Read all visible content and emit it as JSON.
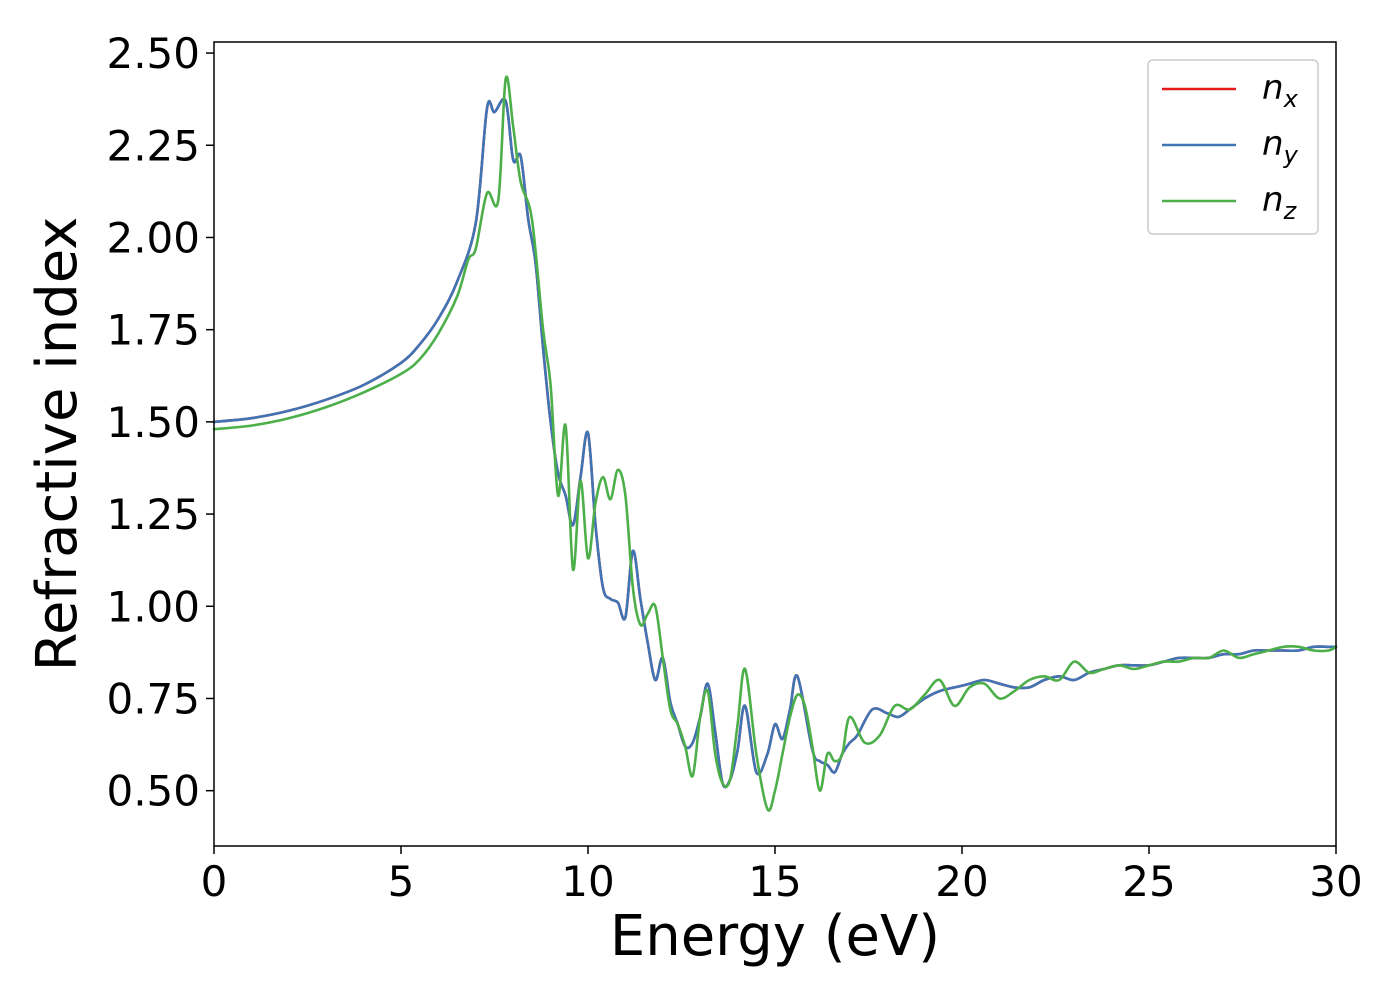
{
  "chart_data": {
    "type": "line",
    "title": "",
    "xlabel": "Energy (eV)",
    "ylabel": "Refractive index",
    "xlim": [
      0,
      30
    ],
    "ylim": [
      0.35,
      2.53
    ],
    "xticks": [
      0,
      5,
      10,
      15,
      20,
      25,
      30
    ],
    "xtick_labels": [
      "0",
      "5",
      "10",
      "15",
      "20",
      "25",
      "30"
    ],
    "yticks": [
      0.5,
      0.75,
      1.0,
      1.25,
      1.5,
      1.75,
      2.0,
      2.25,
      2.5
    ],
    "ytick_labels": [
      "0.50",
      "0.75",
      "1.00",
      "1.25",
      "1.50",
      "1.75",
      "2.00",
      "2.25",
      "2.50"
    ],
    "grid": false,
    "legend_position": "top-right",
    "series": [
      {
        "name": "n",
        "subscript": "x",
        "color": "#e41a1c",
        "x": [
          0,
          1,
          2,
          3,
          4,
          5,
          5.5,
          6,
          6.5,
          7,
          7.3,
          7.5,
          7.8,
          8,
          8.2,
          8.4,
          8.6,
          8.8,
          9,
          9.2,
          9.4,
          9.6,
          9.8,
          10,
          10.2,
          10.4,
          10.6,
          10.8,
          11,
          11.2,
          11.4,
          11.6,
          11.8,
          12,
          12.2,
          12.4,
          12.6,
          12.8,
          13,
          13.2,
          13.4,
          13.6,
          13.8,
          14,
          14.2,
          14.5,
          14.8,
          15,
          15.2,
          15.4,
          15.6,
          16,
          16.2,
          16.4,
          16.6,
          16.8,
          17,
          17.2,
          17.6,
          18,
          18.3,
          18.6,
          19,
          19.4,
          19.8,
          20.2,
          20.6,
          21,
          21.4,
          21.8,
          22.2,
          22.6,
          23,
          23.4,
          23.8,
          24.2,
          24.6,
          25,
          25.4,
          25.8,
          26.2,
          26.6,
          27,
          27.4,
          27.8,
          28.2,
          28.6,
          29,
          29.4,
          29.8,
          30
        ],
        "y": [
          1.5,
          1.51,
          1.53,
          1.56,
          1.6,
          1.66,
          1.71,
          1.78,
          1.88,
          2.04,
          2.35,
          2.34,
          2.37,
          2.21,
          2.22,
          2.05,
          1.93,
          1.7,
          1.5,
          1.36,
          1.3,
          1.22,
          1.35,
          1.47,
          1.22,
          1.05,
          1.02,
          1.01,
          0.97,
          1.15,
          1.02,
          0.9,
          0.8,
          0.86,
          0.74,
          0.68,
          0.62,
          0.63,
          0.7,
          0.79,
          0.66,
          0.52,
          0.53,
          0.61,
          0.73,
          0.55,
          0.6,
          0.68,
          0.64,
          0.72,
          0.81,
          0.61,
          0.58,
          0.57,
          0.55,
          0.6,
          0.63,
          0.65,
          0.72,
          0.71,
          0.7,
          0.72,
          0.75,
          0.77,
          0.78,
          0.79,
          0.8,
          0.79,
          0.78,
          0.78,
          0.8,
          0.81,
          0.8,
          0.82,
          0.83,
          0.84,
          0.84,
          0.84,
          0.85,
          0.86,
          0.86,
          0.86,
          0.87,
          0.87,
          0.88,
          0.88,
          0.88,
          0.88,
          0.89,
          0.89,
          0.89
        ]
      },
      {
        "name": "n",
        "subscript": "y",
        "color": "#3f75b5",
        "x": [
          0,
          1,
          2,
          3,
          4,
          5,
          5.5,
          6,
          6.5,
          7,
          7.3,
          7.5,
          7.8,
          8,
          8.2,
          8.4,
          8.6,
          8.8,
          9,
          9.2,
          9.4,
          9.6,
          9.8,
          10,
          10.2,
          10.4,
          10.6,
          10.8,
          11,
          11.2,
          11.4,
          11.6,
          11.8,
          12,
          12.2,
          12.4,
          12.6,
          12.8,
          13,
          13.2,
          13.4,
          13.6,
          13.8,
          14,
          14.2,
          14.5,
          14.8,
          15,
          15.2,
          15.4,
          15.6,
          16,
          16.2,
          16.4,
          16.6,
          16.8,
          17,
          17.2,
          17.6,
          18,
          18.3,
          18.6,
          19,
          19.4,
          19.8,
          20.2,
          20.6,
          21,
          21.4,
          21.8,
          22.2,
          22.6,
          23,
          23.4,
          23.8,
          24.2,
          24.6,
          25,
          25.4,
          25.8,
          26.2,
          26.6,
          27,
          27.4,
          27.8,
          28.2,
          28.6,
          29,
          29.4,
          29.8,
          30
        ],
        "y": [
          1.5,
          1.51,
          1.53,
          1.56,
          1.6,
          1.66,
          1.71,
          1.78,
          1.88,
          2.04,
          2.35,
          2.34,
          2.37,
          2.21,
          2.22,
          2.05,
          1.93,
          1.7,
          1.5,
          1.36,
          1.3,
          1.22,
          1.35,
          1.47,
          1.22,
          1.05,
          1.02,
          1.01,
          0.97,
          1.15,
          1.02,
          0.9,
          0.8,
          0.86,
          0.74,
          0.68,
          0.62,
          0.63,
          0.7,
          0.79,
          0.66,
          0.52,
          0.53,
          0.61,
          0.73,
          0.55,
          0.6,
          0.68,
          0.64,
          0.72,
          0.81,
          0.61,
          0.58,
          0.57,
          0.55,
          0.6,
          0.63,
          0.65,
          0.72,
          0.71,
          0.7,
          0.72,
          0.75,
          0.77,
          0.78,
          0.79,
          0.8,
          0.79,
          0.78,
          0.78,
          0.8,
          0.81,
          0.8,
          0.82,
          0.83,
          0.84,
          0.84,
          0.84,
          0.85,
          0.86,
          0.86,
          0.86,
          0.87,
          0.87,
          0.88,
          0.88,
          0.88,
          0.88,
          0.89,
          0.89,
          0.89
        ]
      },
      {
        "name": "n",
        "subscript": "z",
        "color": "#4daf4a",
        "x": [
          0,
          1,
          2,
          3,
          4,
          5,
          5.5,
          6,
          6.5,
          6.8,
          7,
          7.3,
          7.6,
          7.8,
          8,
          8.2,
          8.5,
          8.8,
          9,
          9.2,
          9.4,
          9.6,
          9.8,
          10,
          10.2,
          10.4,
          10.6,
          10.8,
          11,
          11.2,
          11.4,
          11.6,
          11.8,
          12,
          12.2,
          12.4,
          12.6,
          12.8,
          13,
          13.2,
          13.4,
          13.6,
          13.8,
          14,
          14.2,
          14.5,
          14.8,
          15,
          15.2,
          15.4,
          15.6,
          15.8,
          16,
          16.2,
          16.4,
          16.6,
          16.8,
          17,
          17.4,
          17.8,
          18.2,
          18.6,
          19,
          19.4,
          19.8,
          20.2,
          20.6,
          21,
          21.4,
          21.8,
          22.2,
          22.6,
          23,
          23.4,
          23.8,
          24.2,
          24.6,
          25,
          25.4,
          25.8,
          26.2,
          26.6,
          27,
          27.4,
          27.8,
          28.2,
          28.6,
          29,
          29.4,
          29.8,
          30
        ],
        "y": [
          1.48,
          1.49,
          1.51,
          1.54,
          1.58,
          1.63,
          1.67,
          1.74,
          1.84,
          1.94,
          1.97,
          2.12,
          2.1,
          2.43,
          2.3,
          2.15,
          2.05,
          1.75,
          1.6,
          1.3,
          1.49,
          1.1,
          1.34,
          1.13,
          1.28,
          1.35,
          1.29,
          1.37,
          1.3,
          1.05,
          0.95,
          0.98,
          1.0,
          0.86,
          0.72,
          0.68,
          0.62,
          0.54,
          0.7,
          0.77,
          0.6,
          0.52,
          0.53,
          0.68,
          0.83,
          0.6,
          0.45,
          0.5,
          0.6,
          0.7,
          0.76,
          0.73,
          0.62,
          0.5,
          0.6,
          0.58,
          0.6,
          0.7,
          0.63,
          0.65,
          0.73,
          0.72,
          0.76,
          0.8,
          0.73,
          0.78,
          0.79,
          0.75,
          0.77,
          0.8,
          0.81,
          0.8,
          0.85,
          0.82,
          0.83,
          0.84,
          0.83,
          0.84,
          0.85,
          0.85,
          0.86,
          0.86,
          0.88,
          0.86,
          0.87,
          0.88,
          0.89,
          0.89,
          0.88,
          0.88,
          0.89
        ]
      }
    ]
  }
}
